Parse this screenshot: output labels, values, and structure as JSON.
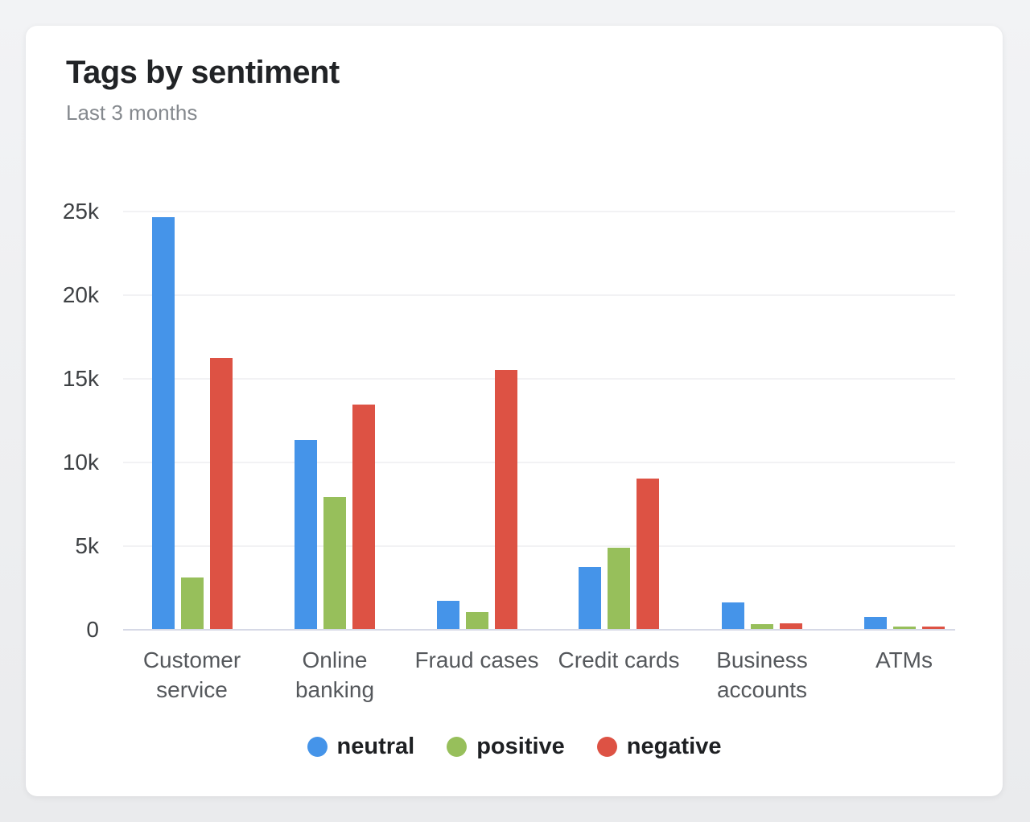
{
  "card": {
    "title": "Tags by sentiment",
    "subtitle": "Last 3 months"
  },
  "chart_data": {
    "type": "bar",
    "title": "Tags by sentiment",
    "subtitle": "Last 3 months",
    "categories": [
      "Customer service",
      "Online banking",
      "Fraud cases",
      "Credit cards",
      "Business accounts",
      "ATMs"
    ],
    "series": [
      {
        "name": "neutral",
        "color": "#4594e9",
        "values": [
          24600,
          11300,
          1700,
          3700,
          1600,
          700
        ]
      },
      {
        "name": "positive",
        "color": "#97bf5b",
        "values": [
          3100,
          7900,
          1000,
          4850,
          300,
          150
        ]
      },
      {
        "name": "negative",
        "color": "#dd5244",
        "values": [
          16200,
          13400,
          15500,
          9000,
          330,
          170
        ]
      }
    ],
    "ylim": [
      0,
      25000
    ],
    "yticks": [
      {
        "label": "0",
        "value": 0
      },
      {
        "label": "5k",
        "value": 5000
      },
      {
        "label": "10k",
        "value": 10000
      },
      {
        "label": "15k",
        "value": 15000
      },
      {
        "label": "20k",
        "value": 20000
      },
      {
        "label": "25k",
        "value": 25000
      }
    ],
    "grid": true,
    "legend_position": "bottom",
    "legend": [
      "neutral",
      "positive",
      "negative"
    ]
  },
  "colors": {
    "neutral": "#4594e9",
    "positive": "#97bf5b",
    "negative": "#dd5244",
    "gridline": "#f2f2f4",
    "axis_line": "#d6d9e6"
  }
}
